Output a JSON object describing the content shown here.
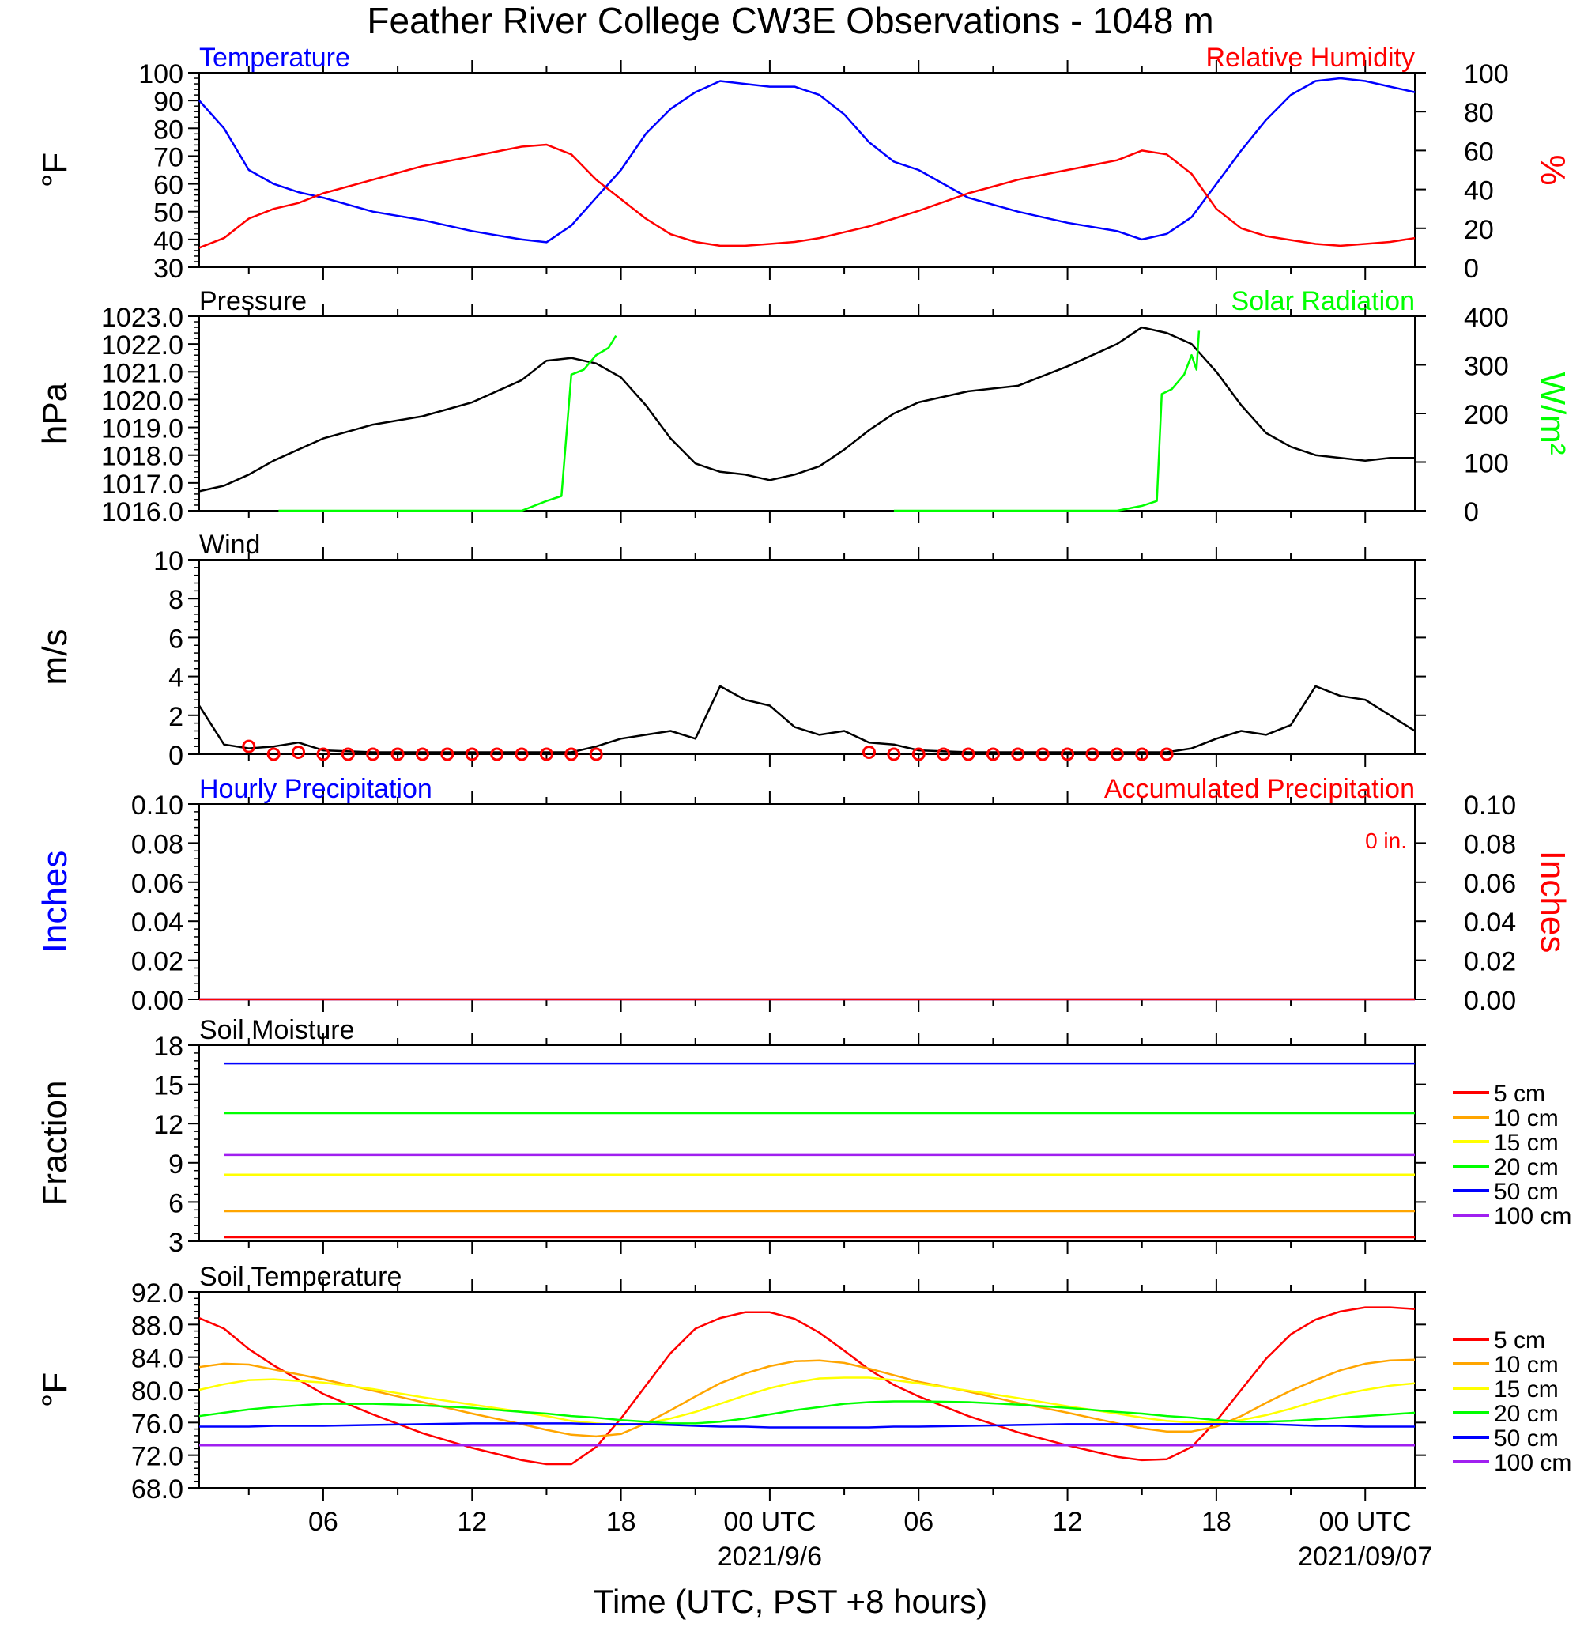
{
  "header": {
    "title": "Feather River College CW3E Observations - 1048 m"
  },
  "x_axis": {
    "ticks": [
      "06",
      "12",
      "18",
      "00 UTC",
      "06",
      "12",
      "18",
      "00 UTC"
    ],
    "dates": [
      "2021/9/6",
      "2021/09/07"
    ],
    "xlabel": "Time (UTC, PST +8 hours)",
    "range_hours": [
      1,
      50
    ]
  },
  "legend": {
    "depths": [
      "5 cm",
      "10 cm",
      "15 cm",
      "20 cm",
      "50 cm",
      "100 cm"
    ],
    "colors": [
      "#ff0000",
      "#ffa500",
      "#ffff00",
      "#00ff00",
      "#0000ff",
      "#a020f0"
    ]
  },
  "chart_data": [
    {
      "type": "line",
      "title": "Temperature",
      "right_title": "Relative Humidity",
      "ylabel": "°F",
      "right_ylabel": "%",
      "ylim": [
        30,
        100
      ],
      "right_ylim": [
        0,
        100
      ],
      "yticks": [
        "100",
        "90",
        "80",
        "70",
        "60",
        "50",
        "40",
        "30"
      ],
      "right_yticks": [
        "100",
        "80",
        "60",
        "40",
        "20",
        "0"
      ],
      "x_hours": [
        1,
        2,
        3,
        4,
        5,
        6,
        8,
        10,
        12,
        14,
        15,
        16,
        17,
        18,
        19,
        20,
        21,
        22,
        23,
        24,
        25,
        26,
        27,
        28,
        29,
        30,
        32,
        34,
        36,
        38,
        39,
        40,
        41,
        42,
        43,
        44,
        45,
        46,
        47,
        48,
        49,
        50
      ],
      "series": [
        {
          "name": "Temperature",
          "axis": "left",
          "color": "#0000ff",
          "values": [
            90,
            80,
            65,
            60,
            57,
            55,
            50,
            47,
            43,
            40,
            39,
            45,
            55,
            65,
            78,
            87,
            93,
            97,
            96,
            95,
            95,
            92,
            85,
            75,
            68,
            65,
            55,
            50,
            46,
            43,
            40,
            42,
            48,
            60,
            72,
            83,
            92,
            97,
            98,
            97,
            95,
            93
          ]
        },
        {
          "name": "Relative Humidity",
          "axis": "right",
          "color": "#ff0000",
          "values": [
            10,
            15,
            25,
            30,
            33,
            38,
            45,
            52,
            57,
            62,
            63,
            58,
            45,
            35,
            25,
            17,
            13,
            11,
            11,
            12,
            13,
            15,
            18,
            21,
            25,
            29,
            38,
            45,
            50,
            55,
            60,
            58,
            48,
            30,
            20,
            16,
            14,
            12,
            11,
            12,
            13,
            15
          ]
        }
      ]
    },
    {
      "type": "line",
      "title": "Pressure",
      "right_title": "Solar Radiation",
      "ylabel": "hPa",
      "right_ylabel": "W/m²",
      "ylim": [
        1016,
        1023
      ],
      "right_ylim": [
        0,
        400
      ],
      "yticks": [
        "1023.0",
        "1022.0",
        "1021.0",
        "1020.0",
        "1019.0",
        "1018.0",
        "1017.0",
        "1016.0"
      ],
      "right_yticks": [
        "400",
        "300",
        "200",
        "100",
        "0"
      ],
      "series": [
        {
          "name": "Pressure",
          "axis": "left",
          "color": "#000000",
          "x_hours": [
            1,
            2,
            3,
            4,
            6,
            8,
            10,
            12,
            14,
            15,
            16,
            17,
            18,
            19,
            20,
            21,
            22,
            23,
            24,
            25,
            26,
            27,
            28,
            29,
            30,
            32,
            34,
            36,
            38,
            39,
            40,
            41,
            42,
            43,
            44,
            45,
            46,
            47,
            48,
            49,
            50
          ],
          "values": [
            1016.7,
            1016.9,
            1017.3,
            1017.8,
            1018.6,
            1019.1,
            1019.4,
            1019.9,
            1020.7,
            1021.4,
            1021.5,
            1021.3,
            1020.8,
            1019.8,
            1018.6,
            1017.7,
            1017.4,
            1017.3,
            1017.1,
            1017.3,
            1017.6,
            1018.2,
            1018.9,
            1019.5,
            1019.9,
            1020.3,
            1020.5,
            1021.2,
            1022.0,
            1022.6,
            1022.4,
            1022.0,
            1021.0,
            1019.8,
            1018.8,
            1018.3,
            1018.0,
            1017.9,
            1017.8,
            1017.9,
            1017.9
          ]
        },
        {
          "name": "Solar Radiation (day 1)",
          "axis": "right",
          "color": "#00ff00",
          "x_hours": [
            4.2,
            14,
            15,
            15.6,
            16,
            16.5,
            17,
            17.5,
            17.8
          ],
          "values": [
            0,
            0,
            20,
            30,
            280,
            290,
            320,
            335,
            360
          ]
        },
        {
          "name": "Solar Radiation (day 2)",
          "axis": "right",
          "color": "#00ff00",
          "x_hours": [
            29,
            38,
            39,
            39.6,
            39.8,
            40.2,
            40.7,
            41,
            41.2,
            41.3
          ],
          "values": [
            0,
            0,
            10,
            20,
            240,
            250,
            280,
            320,
            290,
            370
          ]
        }
      ]
    },
    {
      "type": "line",
      "title": "Wind",
      "ylabel": "m/s",
      "ylim": [
        0,
        10
      ],
      "yticks": [
        "10",
        "8",
        "6",
        "4",
        "2",
        "0"
      ],
      "x_hours": [
        1,
        2,
        3,
        4,
        5,
        6,
        8,
        10,
        12,
        14,
        16,
        17,
        18,
        19,
        20,
        21,
        22,
        23,
        24,
        25,
        26,
        27,
        28,
        29,
        30,
        32,
        34,
        36,
        38,
        40,
        41,
        42,
        43,
        44,
        45,
        46,
        47,
        48,
        49,
        50
      ],
      "series": [
        {
          "name": "Wind speed",
          "color": "#000000",
          "values": [
            2.5,
            0.5,
            0.3,
            0.4,
            0.6,
            0.2,
            0.1,
            0.1,
            0.1,
            0.1,
            0.1,
            0.4,
            0.8,
            1.0,
            1.2,
            0.8,
            3.5,
            2.8,
            2.5,
            1.4,
            1.0,
            1.2,
            0.6,
            0.5,
            0.2,
            0.1,
            0.1,
            0.1,
            0.1,
            0.1,
            0.3,
            0.8,
            1.2,
            1.0,
            1.5,
            3.5,
            3.0,
            2.8,
            2.0,
            1.2
          ]
        }
      ],
      "calm_markers_hours": [
        3,
        4,
        5,
        6,
        7,
        8,
        9,
        10,
        11,
        12,
        13,
        14,
        15,
        16,
        17,
        28,
        29,
        30,
        31,
        32,
        33,
        34,
        35,
        36,
        37,
        38,
        39,
        40
      ],
      "calm_marker_values": [
        0.4,
        0,
        0.1,
        0,
        0,
        0,
        0,
        0,
        0,
        0,
        0,
        0,
        0,
        0,
        0,
        0.1,
        0,
        0,
        0,
        0,
        0,
        0,
        0,
        0,
        0,
        0,
        0,
        0
      ]
    },
    {
      "type": "line",
      "title": "Hourly Precipitation",
      "right_title": "Accumulated Precipitation",
      "annotation": "0 in.",
      "ylabel": "Inches",
      "right_ylabel": "Inches",
      "ylim": [
        0,
        0.1
      ],
      "right_ylim": [
        0,
        0.1
      ],
      "yticks": [
        "0.10",
        "0.08",
        "0.06",
        "0.04",
        "0.02",
        "0.00"
      ],
      "right_yticks": [
        "0.10",
        "0.08",
        "0.06",
        "0.04",
        "0.02",
        "0.00"
      ],
      "series": [
        {
          "name": "Hourly Precipitation",
          "axis": "left",
          "color": "#0000ff",
          "x_hours": [
            1,
            50
          ],
          "values": [
            0,
            0
          ]
        },
        {
          "name": "Accumulated Precipitation",
          "axis": "right",
          "color": "#ff0000",
          "x_hours": [
            1,
            50
          ],
          "values": [
            0,
            0
          ]
        }
      ]
    },
    {
      "type": "line",
      "title": "Soil Moisture",
      "ylabel": "Fraction",
      "ylim": [
        3,
        18
      ],
      "yticks": [
        "18",
        "15",
        "12",
        "9",
        "6",
        "3"
      ],
      "x_hours": [
        2,
        50
      ],
      "series": [
        {
          "name": "5 cm",
          "color": "#ff0000",
          "values": [
            3.3,
            3.3
          ]
        },
        {
          "name": "10 cm",
          "color": "#ffa500",
          "values": [
            5.3,
            5.3
          ]
        },
        {
          "name": "15 cm",
          "color": "#ffff00",
          "values": [
            8.1,
            8.1
          ]
        },
        {
          "name": "20 cm",
          "color": "#00ff00",
          "values": [
            12.8,
            12.8
          ]
        },
        {
          "name": "50 cm",
          "color": "#0000ff",
          "values": [
            16.6,
            16.6
          ]
        },
        {
          "name": "100 cm",
          "color": "#a020f0",
          "values": [
            9.6,
            9.6
          ]
        }
      ]
    },
    {
      "type": "line",
      "title": "Soil Temperature",
      "ylabel": "°F",
      "ylim": [
        68,
        92
      ],
      "yticks": [
        "92.0",
        "88.0",
        "84.0",
        "80.0",
        "76.0",
        "72.0",
        "68.0"
      ],
      "x_hours": [
        1,
        2,
        3,
        4,
        6,
        8,
        10,
        12,
        14,
        15,
        16,
        17,
        18,
        19,
        20,
        21,
        22,
        23,
        24,
        25,
        26,
        27,
        28,
        29,
        30,
        32,
        34,
        36,
        38,
        39,
        40,
        41,
        42,
        43,
        44,
        45,
        46,
        47,
        48,
        49,
        50
      ],
      "series": [
        {
          "name": "5 cm",
          "color": "#ff0000",
          "values": [
            88.8,
            87.5,
            85,
            83,
            79.5,
            77,
            74.7,
            72.9,
            71.4,
            70.9,
            70.9,
            73,
            76.5,
            80.5,
            84.5,
            87.5,
            88.8,
            89.5,
            89.5,
            88.7,
            87,
            84.8,
            82.5,
            80.6,
            79.2,
            76.8,
            74.8,
            73.2,
            71.8,
            71.4,
            71.5,
            73,
            76.2,
            80,
            83.8,
            86.8,
            88.6,
            89.6,
            90.1,
            90.1,
            89.9
          ]
        },
        {
          "name": "10 cm",
          "color": "#ffa500",
          "values": [
            82.8,
            83.2,
            83.1,
            82.5,
            81.3,
            79.9,
            78.5,
            77.1,
            75.8,
            75.1,
            74.5,
            74.3,
            74.6,
            75.9,
            77.5,
            79.2,
            80.8,
            82,
            82.9,
            83.5,
            83.6,
            83.3,
            82.6,
            81.8,
            81,
            79.8,
            78.4,
            77.2,
            75.9,
            75.3,
            74.9,
            74.9,
            75.5,
            76.8,
            78.4,
            79.9,
            81.2,
            82.4,
            83.2,
            83.6,
            83.7
          ]
        },
        {
          "name": "15 cm",
          "color": "#ffff00",
          "values": [
            80,
            80.7,
            81.2,
            81.3,
            80.9,
            80.1,
            79.1,
            78.2,
            77.3,
            76.8,
            76.2,
            75.9,
            75.7,
            75.9,
            76.5,
            77.3,
            78.3,
            79.3,
            80.2,
            80.9,
            81.4,
            81.5,
            81.5,
            81.2,
            80.8,
            79.9,
            79,
            78,
            77.1,
            76.6,
            76.2,
            76,
            76,
            76.3,
            76.9,
            77.7,
            78.6,
            79.4,
            80,
            80.5,
            80.8
          ]
        },
        {
          "name": "20 cm",
          "color": "#00ff00",
          "values": [
            76.8,
            77.2,
            77.6,
            77.9,
            78.3,
            78.3,
            78.1,
            77.8,
            77.3,
            77.1,
            76.8,
            76.6,
            76.3,
            76.1,
            75.9,
            75.9,
            76.1,
            76.5,
            77,
            77.5,
            77.9,
            78.3,
            78.5,
            78.6,
            78.6,
            78.5,
            78.2,
            77.8,
            77.3,
            77.1,
            76.8,
            76.6,
            76.3,
            76.1,
            76.1,
            76.2,
            76.4,
            76.6,
            76.8,
            77,
            77.2
          ]
        },
        {
          "name": "50 cm",
          "color": "#0000ff",
          "values": [
            75.5,
            75.5,
            75.5,
            75.6,
            75.6,
            75.7,
            75.8,
            75.9,
            75.9,
            75.9,
            75.9,
            75.8,
            75.8,
            75.8,
            75.7,
            75.6,
            75.5,
            75.5,
            75.4,
            75.4,
            75.4,
            75.4,
            75.4,
            75.5,
            75.5,
            75.6,
            75.7,
            75.8,
            75.8,
            75.8,
            75.8,
            75.8,
            75.8,
            75.8,
            75.8,
            75.7,
            75.6,
            75.6,
            75.5,
            75.5,
            75.5
          ]
        },
        {
          "name": "100 cm",
          "color": "#a020f0",
          "values": [
            73.2,
            73.2,
            73.2,
            73.2,
            73.2,
            73.2,
            73.2,
            73.2,
            73.2,
            73.2,
            73.2,
            73.2,
            73.2,
            73.2,
            73.2,
            73.2,
            73.2,
            73.2,
            73.2,
            73.2,
            73.2,
            73.2,
            73.2,
            73.2,
            73.2,
            73.2,
            73.2,
            73.2,
            73.2,
            73.2,
            73.2,
            73.2,
            73.2,
            73.2,
            73.2,
            73.2,
            73.2,
            73.2,
            73.2,
            73.2,
            73.2
          ]
        }
      ]
    }
  ]
}
